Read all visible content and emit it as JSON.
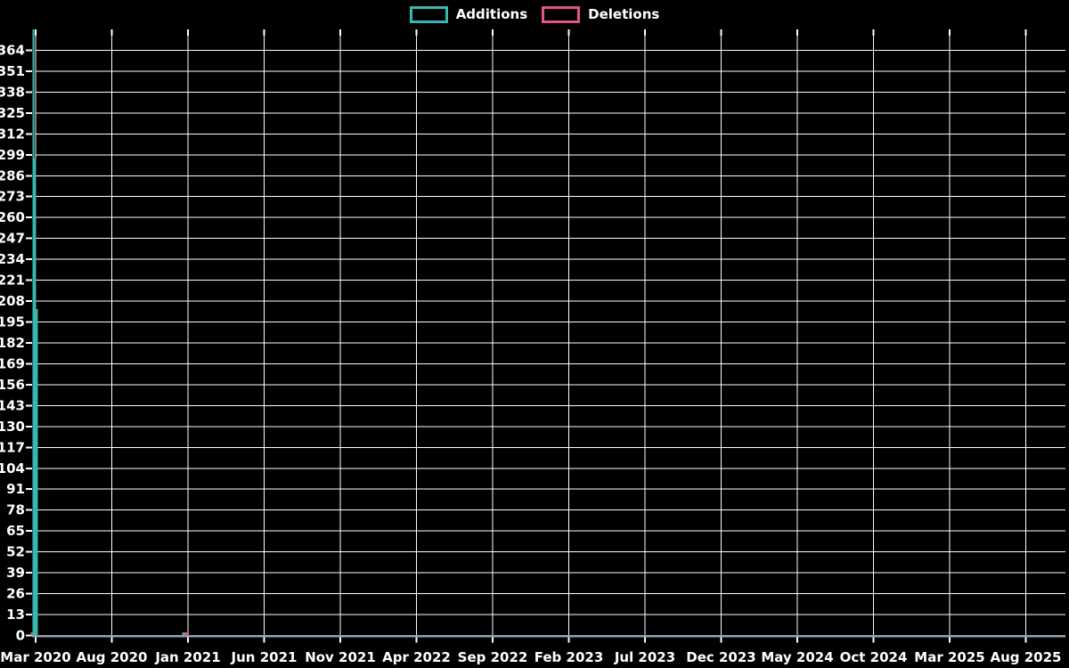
{
  "page": {
    "background": "#000000"
  },
  "chart_data": {
    "type": "bar",
    "title": "",
    "legend": {
      "position": "top-center",
      "items": [
        {
          "label": "Additions",
          "color": "#3ab6ae"
        },
        {
          "label": "Deletions",
          "color": "#e4567e"
        }
      ]
    },
    "x_axis": {
      "tick_labels": [
        "Mar 2020",
        "Aug 2020",
        "Jan 2021",
        "Jun 2021",
        "Nov 2021",
        "Apr 2022",
        "Sep 2022",
        "Feb 2023",
        "Jul 2023",
        "Dec 2023",
        "May 2024",
        "Oct 2024",
        "Mar 2025",
        "Aug 2025"
      ],
      "axis_line_color": "#8fa6ae",
      "tick_mark_color": "#ffffff",
      "label_color": "#ffffff"
    },
    "y_axis": {
      "tick_labels": [
        0,
        13,
        26,
        39,
        52,
        65,
        78,
        91,
        104,
        117,
        130,
        143,
        156,
        169,
        182,
        195,
        208,
        221,
        234,
        247,
        260,
        273,
        286,
        299,
        312,
        325,
        338,
        351,
        364
      ],
      "tick_step": 13,
      "range": [
        0,
        377
      ],
      "label_color": "#ffffff"
    },
    "grid": {
      "show": true,
      "color": "#ffffff"
    },
    "x_unit_note": "u = horizontal position measured in x-tick-spacing units (0 = Mar 2020 tick, 1 = Aug 2020 tick, ...)",
    "series": [
      {
        "name": "Additions",
        "color": "#3ab6ae",
        "bars": [
          {
            "u": -0.03,
            "value": 377,
            "approx_date": "early Mar 2020"
          },
          {
            "u": -0.005,
            "value": 297,
            "approx_date": "mid Mar 2020"
          },
          {
            "u": 0.02,
            "value": 203,
            "approx_date": "late Mar 2020"
          },
          {
            "u": 1.955,
            "value": 2,
            "w": 5,
            "approx_date": "early Jan 2021"
          }
        ]
      },
      {
        "name": "Deletions",
        "color": "#e4567e",
        "bars": [
          {
            "u": -0.053,
            "value": 2,
            "approx_date": "early Mar 2020"
          },
          {
            "u": 1.985,
            "value": 2,
            "w": 5,
            "approx_date": "early Jan 2021"
          }
        ]
      }
    ]
  }
}
